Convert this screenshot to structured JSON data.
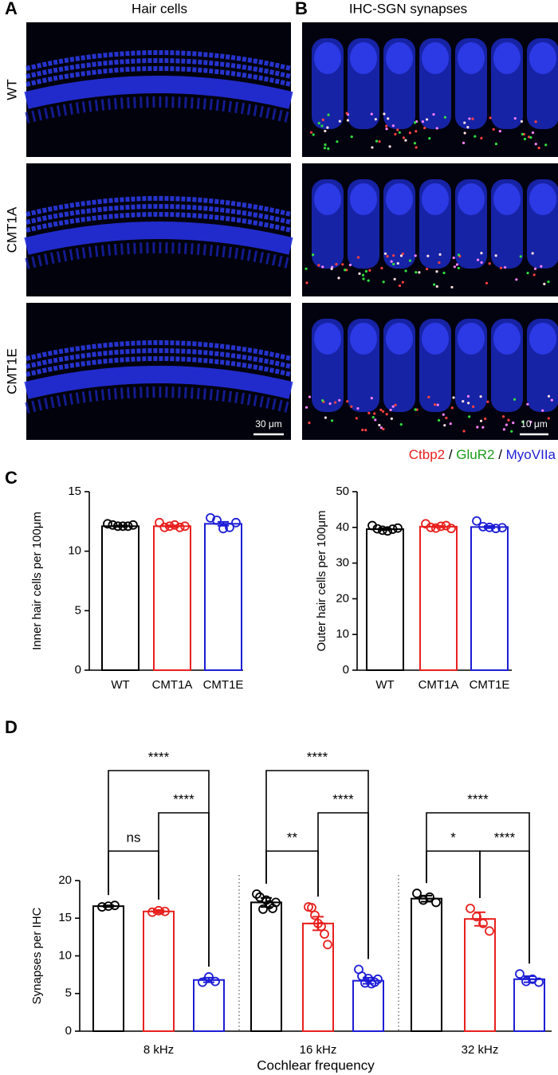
{
  "panel_labels": [
    "A",
    "B",
    "C",
    "D"
  ],
  "column_titles": [
    "Hair cells",
    "IHC-SGN synapses"
  ],
  "row_labels": [
    "WT",
    "CMT1A",
    "CMT1E"
  ],
  "scale_bars": [
    "30 μm",
    "10 μm"
  ],
  "stain_legend": {
    "markers": [
      "Ctbp2",
      "GluR2",
      "MyoVIIa"
    ],
    "colors": [
      "#e8201e",
      "#1a9a1a",
      "#1d1dd6"
    ],
    "separator": "/"
  },
  "chart_data": [
    {
      "type": "bar",
      "ylabel": "Inner hair cells per 100μm",
      "categories": [
        "WT",
        "CMT1A",
        "CMT1E"
      ],
      "colors": [
        "#000000",
        "#e8201e",
        "#1d1dd6"
      ],
      "values": [
        12.1,
        12.1,
        12.3
      ],
      "errors": [
        0.05,
        0.07,
        0.16
      ],
      "points": [
        [
          12.3,
          12.2,
          12.1,
          12.1,
          12.1,
          12.2
        ],
        [
          12.4,
          12.0,
          12.1,
          12.2,
          12.0,
          12.1
        ],
        [
          12.8,
          12.6,
          11.9,
          12.0,
          12.4
        ]
      ],
      "ylim": [
        0,
        15
      ],
      "yticks": [
        0,
        5,
        10,
        15
      ]
    },
    {
      "type": "bar",
      "ylabel": "Outer hair cells per 100μm",
      "categories": [
        "WT",
        "CMT1A",
        "CMT1E"
      ],
      "colors": [
        "#000000",
        "#e8201e",
        "#1d1dd6"
      ],
      "values": [
        39.5,
        40.2,
        40.1
      ],
      "errors": [
        0.25,
        0.2,
        0.3
      ],
      "points": [
        [
          40.5,
          39.6,
          39.2,
          39.0,
          39.5,
          39.8
        ],
        [
          41.0,
          40.0,
          39.8,
          40.3,
          40.5,
          39.7
        ],
        [
          41.8,
          40.2,
          40.0,
          39.7,
          39.9
        ]
      ],
      "ylim": [
        0,
        50
      ],
      "yticks": [
        0,
        10,
        20,
        30,
        40,
        50
      ]
    },
    {
      "type": "grouped-bar",
      "ylabel": "Synapses per IHC",
      "xlabel": "Cochlear frequency",
      "categories": [
        "8 kHz",
        "16 kHz",
        "32 kHz"
      ],
      "series": [
        {
          "color": "#000000",
          "values": [
            16.6,
            17.1,
            17.6
          ],
          "errors": [
            0.1,
            0.6,
            0.4
          ],
          "points": [
            [
              16.5,
              16.6,
              16.7
            ],
            [
              18.2,
              17.8,
              16.2,
              17.4,
              16.8,
              16.3,
              17.1
            ],
            [
              18.3,
              17.4,
              17.8,
              17.1
            ]
          ]
        },
        {
          "color": "#e8201e",
          "values": [
            15.9,
            14.3,
            14.9
          ],
          "errors": [
            0.2,
            0.9,
            0.9
          ],
          "points": [
            [
              15.8,
              16.0,
              15.9
            ],
            [
              16.5,
              16.4,
              15.4,
              14.3,
              13.9,
              12.9,
              11.5
            ],
            [
              16.3,
              15.2,
              14.3,
              13.3
            ]
          ]
        },
        {
          "color": "#1d1dd6",
          "values": [
            6.8,
            6.7,
            6.9
          ],
          "errors": [
            0.3,
            0.4,
            0.4
          ],
          "points": [
            [
              6.5,
              7.2,
              6.6
            ],
            [
              8.2,
              7.3,
              6.4,
              7.0,
              6.3,
              6.5,
              6.9
            ],
            [
              7.6,
              6.6,
              6.9,
              6.5
            ]
          ]
        }
      ],
      "comparisons": [
        {
          "group": 0,
          "pair": [
            0,
            1
          ],
          "label": "ns"
        },
        {
          "group": 0,
          "pair": [
            1,
            2
          ],
          "label": "****"
        },
        {
          "group": 0,
          "pair": [
            0,
            2
          ],
          "label": "****"
        },
        {
          "group": 1,
          "pair": [
            0,
            1
          ],
          "label": "**"
        },
        {
          "group": 1,
          "pair": [
            1,
            2
          ],
          "label": "****"
        },
        {
          "group": 1,
          "pair": [
            0,
            2
          ],
          "label": "****"
        },
        {
          "group": 2,
          "pair": [
            0,
            1
          ],
          "label": "*"
        },
        {
          "group": 2,
          "pair": [
            1,
            2
          ],
          "label": "****"
        },
        {
          "group": 2,
          "pair": [
            0,
            2
          ],
          "label": "****"
        }
      ],
      "ylim": [
        0,
        20
      ],
      "yticks": [
        0,
        5,
        10,
        15,
        20
      ]
    }
  ]
}
